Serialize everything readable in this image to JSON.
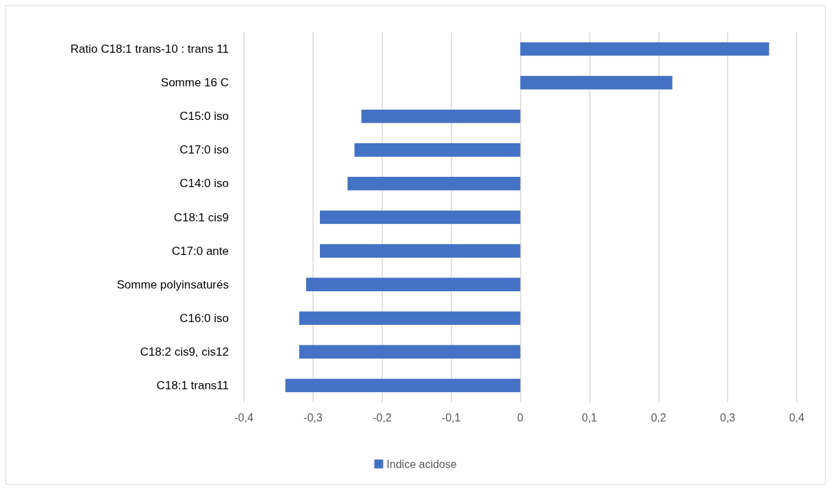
{
  "chart_data": {
    "type": "bar",
    "orientation": "horizontal",
    "categories": [
      "Ratio C18:1 trans-10 : trans 11",
      "Somme 16 C",
      "C15:0 iso",
      "C17:0 iso",
      "C14:0 iso",
      "C18:1 cis9",
      "C17:0 ante",
      "Somme polyinsaturés",
      "C16:0 iso",
      "C18:2 cis9, cis12",
      "C18:1 trans11"
    ],
    "series": [
      {
        "name": "Indice acidose",
        "color": "#4472c4",
        "values": [
          0.36,
          0.22,
          -0.23,
          -0.24,
          -0.25,
          -0.29,
          -0.29,
          -0.31,
          -0.32,
          -0.32,
          -0.34
        ]
      }
    ],
    "xlim": [
      -0.4,
      0.4
    ],
    "xticks": [
      {
        "value": -0.4,
        "label": "-0,4"
      },
      {
        "value": -0.3,
        "label": "-0,3"
      },
      {
        "value": -0.2,
        "label": "-0,2"
      },
      {
        "value": -0.1,
        "label": "-0,1"
      },
      0,
      {
        "value": 0.1,
        "label": "0,1"
      },
      {
        "value": 0.2,
        "label": "0,2"
      },
      {
        "value": 0.3,
        "label": "0,3"
      },
      {
        "value": 0.4,
        "label": "0,4"
      }
    ],
    "grid": "x",
    "legend": "bottom"
  }
}
